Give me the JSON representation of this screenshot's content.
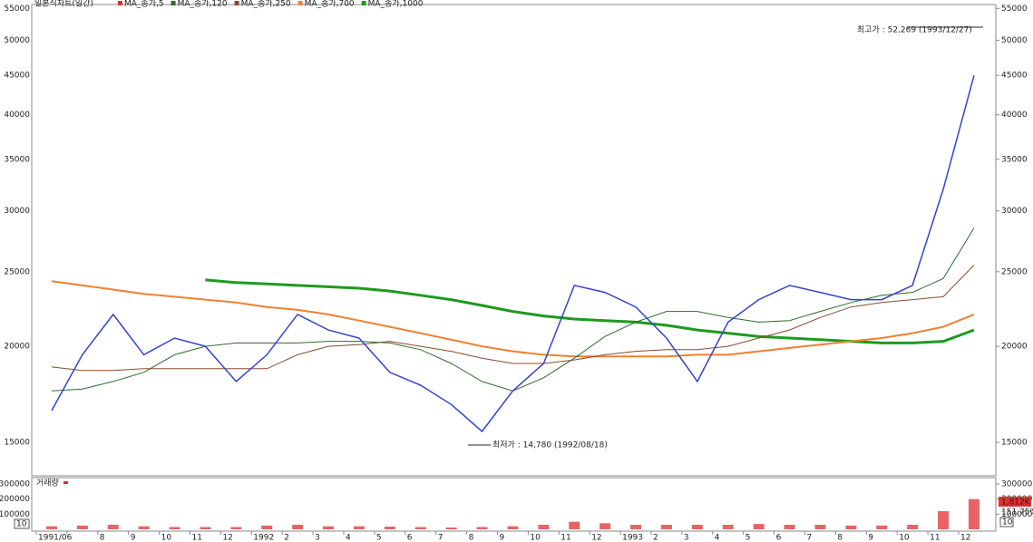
{
  "chart_data": {
    "type": "line",
    "title": "일본식차트(일간)",
    "legend": [
      {
        "name": "MA_종가,5",
        "color": "#e03030"
      },
      {
        "name": "MA_종가,120",
        "color": "#2f6b2f"
      },
      {
        "name": "MA_종가,250",
        "color": "#8b4a2b"
      },
      {
        "name": "MA_종가,700",
        "color": "#f08030"
      },
      {
        "name": "MA_종가,1000",
        "color": "#1e9a1e"
      }
    ],
    "categories": [
      "1991/06",
      null,
      "8",
      "9",
      "10",
      "11",
      "12",
      "1992",
      "2",
      "3",
      "4",
      "5",
      "6",
      "7",
      "8",
      "9",
      "10",
      "11",
      "12",
      "1993",
      "2",
      "3",
      "4",
      "5",
      "6",
      "7",
      "8",
      "9",
      "10",
      "11",
      "12"
    ],
    "series": [
      {
        "name": "종가",
        "color": "#3344cc",
        "width": 1.5,
        "values": [
          16500,
          19500,
          22000,
          19500,
          20500,
          20000,
          18000,
          19500,
          22000,
          21000,
          20500,
          18500,
          17800,
          16800,
          15500,
          17500,
          19000,
          24000,
          23500,
          22500,
          20500,
          18000,
          21500,
          23000,
          24000,
          23500,
          23000,
          23000,
          24000,
          32000,
          45000
        ]
      },
      {
        "name": "MA_종가,120",
        "color": "#2f6b2f",
        "width": 1,
        "values": [
          17500,
          17600,
          18000,
          18500,
          19500,
          20000,
          20200,
          20200,
          20200,
          20300,
          20300,
          20200,
          19800,
          19000,
          18000,
          17500,
          18200,
          19300,
          20600,
          21500,
          22200,
          22200,
          21800,
          21500,
          21600,
          22200,
          22800,
          23300,
          23500,
          24500,
          28500
        ]
      },
      {
        "name": "MA_종가,250",
        "color": "#8b4a2b",
        "width": 1,
        "values": [
          18800,
          18600,
          18600,
          18700,
          18700,
          18700,
          18700,
          18700,
          19500,
          20000,
          20100,
          20300,
          20000,
          19700,
          19300,
          19000,
          19000,
          19200,
          19500,
          19700,
          19800,
          19800,
          20000,
          20500,
          21000,
          21800,
          22500,
          22800,
          23000,
          23200,
          25500
        ]
      },
      {
        "name": "MA_종가,700",
        "color": "#f08030",
        "width": 2,
        "values": [
          24300,
          24000,
          23700,
          23400,
          23200,
          23000,
          22800,
          22500,
          22300,
          22000,
          21600,
          21200,
          20800,
          20400,
          20000,
          19700,
          19500,
          19400,
          19400,
          19400,
          19400,
          19500,
          19500,
          19700,
          19900,
          20100,
          20300,
          20500,
          20800,
          21200,
          22000
        ]
      },
      {
        "name": "MA_종가,1000",
        "color": "#1e9a1e",
        "width": 3,
        "values": [
          null,
          null,
          null,
          null,
          null,
          24400,
          24200,
          24100,
          24000,
          23900,
          23800,
          23600,
          23300,
          23000,
          22600,
          22200,
          21900,
          21700,
          21600,
          21500,
          21300,
          21000,
          20800,
          20600,
          20500,
          20400,
          20300,
          20200,
          20200,
          20300,
          21000
        ]
      }
    ],
    "log": true,
    "ylim": [
      13570,
      55640
    ],
    "yticks": [
      15000,
      20000,
      25000,
      30000,
      35000,
      40000,
      45000,
      50000,
      55000
    ],
    "annotations": [
      {
        "text": "최고가 : 52,269 (1993/12/27)",
        "color": "#e03030"
      },
      {
        "text": "최저가 : 14,780 (1992/08/18)",
        "color": "#3344cc"
      }
    ],
    "volume": {
      "label": "거래량",
      "color": "#e03030",
      "values": [
        20000,
        25000,
        30000,
        20000,
        15000,
        15000,
        15000,
        25000,
        30000,
        20000,
        20000,
        18000,
        15000,
        12000,
        15000,
        20000,
        30000,
        50000,
        40000,
        30000,
        30000,
        30000,
        30000,
        35000,
        30000,
        30000,
        25000,
        25000,
        30000,
        120000,
        200000
      ],
      "ylim": [
        0,
        336000
      ],
      "yticks": [
        100000,
        200000,
        300000
      ],
      "badges": [
        "1,812K",
        "151.75%"
      ],
      "period": "10"
    }
  }
}
